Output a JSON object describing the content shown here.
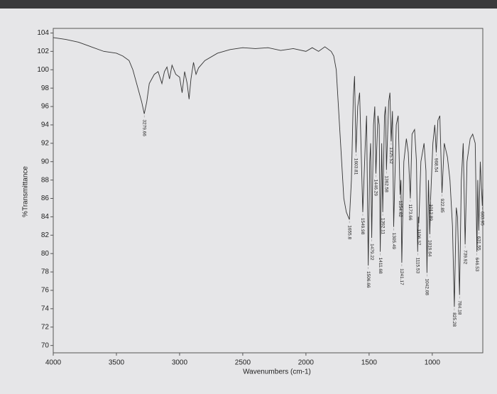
{
  "chart_data": {
    "type": "line",
    "xlabel": "Wavenumbers (cm-1)",
    "ylabel": "%Transmittance",
    "xlim": [
      4000,
      600
    ],
    "ylim": [
      69.2,
      104.5
    ],
    "xticks": [
      4000,
      3500,
      3000,
      2500,
      2000,
      1500,
      1000
    ],
    "yticks": [
      70,
      72,
      74,
      76,
      78,
      80,
      82,
      84,
      86,
      88,
      90,
      92,
      94,
      96,
      98,
      100,
      102,
      104
    ],
    "color": "#333333",
    "x": [
      4000,
      3900,
      3800,
      3700,
      3600,
      3500,
      3450,
      3400,
      3370,
      3330,
      3300,
      3279.66,
      3260,
      3240,
      3200,
      3170,
      3140,
      3120,
      3100,
      3080,
      3060,
      3030,
      3000,
      2980,
      2960,
      2940,
      2925,
      2910,
      2890,
      2870,
      2850,
      2800,
      2700,
      2600,
      2500,
      2400,
      2300,
      2200,
      2100,
      2000,
      1950,
      1900,
      1850,
      1800,
      1780,
      1760,
      1730,
      1700,
      1680,
      1655.8,
      1640,
      1625,
      1615,
      1603.81,
      1590,
      1575,
      1549.98,
      1530,
      1520,
      1506.66,
      1495,
      1488,
      1479.22,
      1465,
      1455,
      1446.29,
      1430,
      1420,
      1411.68,
      1400,
      1392.11,
      1378,
      1370,
      1362.58,
      1345,
      1335,
      1325.52,
      1315,
      1305.49,
      1285,
      1270,
      1254.62,
      1248,
      1241.17,
      1225,
      1205,
      1190,
      1173.66,
      1160,
      1140,
      1125,
      1115.53,
      1110,
      1106.37,
      1090,
      1065,
      1050,
      1042.08,
      1030,
      1019.64,
      1016,
      1012.89,
      995,
      980,
      968.54,
      955,
      940,
      922.85,
      905,
      880,
      860,
      840,
      825.28,
      810,
      800,
      784.18,
      770,
      755,
      739.92,
      725,
      700,
      680,
      660,
      646.53,
      640,
      631.55,
      620,
      603.95,
      600
    ],
    "values": [
      103.5,
      103.3,
      103.0,
      102.5,
      102.0,
      101.8,
      101.5,
      101.0,
      100.0,
      98.0,
      96.5,
      95.2,
      96.5,
      98.5,
      99.5,
      99.8,
      98.5,
      99.8,
      100.3,
      99.0,
      100.5,
      99.5,
      99.2,
      97.5,
      99.8,
      98.5,
      96.8,
      99.0,
      100.8,
      99.5,
      100.2,
      101.0,
      101.8,
      102.2,
      102.4,
      102.3,
      102.4,
      102.1,
      102.3,
      102.0,
      102.4,
      102.0,
      102.5,
      102.0,
      101.5,
      100,
      93,
      86,
      84.5,
      83.7,
      88,
      97,
      99.3,
      91.0,
      96,
      97.5,
      84.5,
      92,
      95,
      78.7,
      90,
      92,
      81.7,
      94,
      96,
      88.7,
      95,
      94,
      80.2,
      92,
      84.5,
      95,
      96,
      89.1,
      96.5,
      97.5,
      92.2,
      95.5,
      82.9,
      94,
      95,
      86.4,
      88,
      79.0,
      90,
      92.5,
      91,
      86.0,
      93,
      93.5,
      90,
      80.2,
      84,
      83.3,
      90,
      92,
      89,
      77.9,
      88,
      82.1,
      84,
      86.0,
      92,
      94,
      91.0,
      94.5,
      95,
      86.6,
      92,
      90.5,
      88,
      83,
      74.2,
      85,
      84,
      75.5,
      88,
      92,
      81.0,
      90,
      92.5,
      93,
      92,
      80.2,
      88,
      82.5,
      90,
      85.2,
      87
    ],
    "annotations": [
      {
        "x": 3279.66,
        "y": 95.2
      },
      {
        "x": 1655.8,
        "y": 83.7
      },
      {
        "x": 1603.81,
        "y": 91.0
      },
      {
        "x": 1549.98,
        "y": 84.5
      },
      {
        "x": 1506.66,
        "y": 78.7
      },
      {
        "x": 1479.22,
        "y": 81.7
      },
      {
        "x": 1446.29,
        "y": 88.7
      },
      {
        "x": 1411.68,
        "y": 80.2
      },
      {
        "x": 1392.11,
        "y": 84.5
      },
      {
        "x": 1362.58,
        "y": 89.1
      },
      {
        "x": 1325.52,
        "y": 92.2
      },
      {
        "x": 1305.49,
        "y": 82.9
      },
      {
        "x": 1254.62,
        "y": 86.4
      },
      {
        "x": 1241.17,
        "y": 79.0
      },
      {
        "x": 1173.66,
        "y": 86.0
      },
      {
        "x": 1115.53,
        "y": 80.2
      },
      {
        "x": 1106.37,
        "y": 83.3
      },
      {
        "x": 1042.08,
        "y": 77.9
      },
      {
        "x": 1019.64,
        "y": 82.1
      },
      {
        "x": 1012.89,
        "y": 86.0
      },
      {
        "x": 968.54,
        "y": 91.0
      },
      {
        "x": 922.85,
        "y": 86.6
      },
      {
        "x": 825.28,
        "y": 74.2
      },
      {
        "x": 784.18,
        "y": 75.5
      },
      {
        "x": 739.92,
        "y": 81.0
      },
      {
        "x": 646.53,
        "y": 80.2
      },
      {
        "x": 631.55,
        "y": 82.5
      },
      {
        "x": 603.95,
        "y": 85.2
      }
    ]
  }
}
